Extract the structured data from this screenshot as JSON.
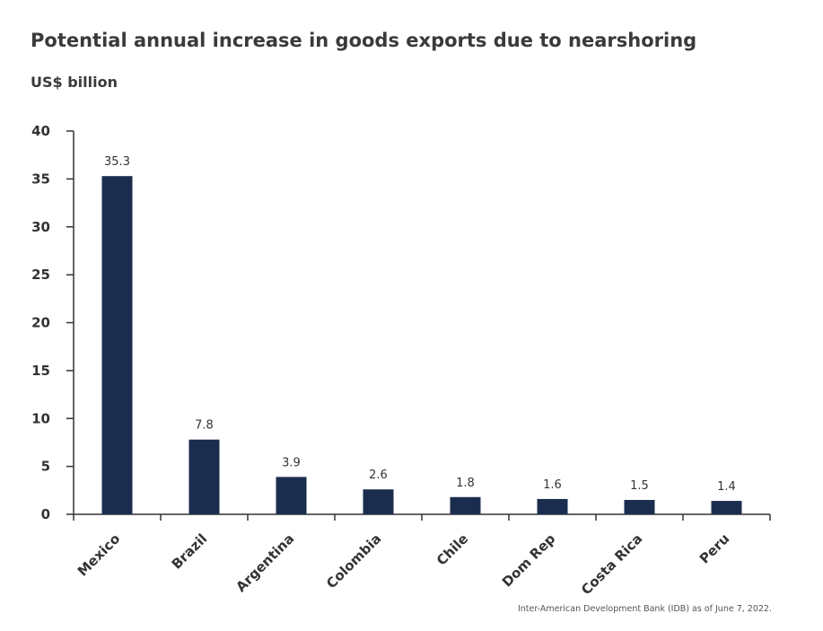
{
  "chart": {
    "title": "Potential annual increase in goods exports due to nearshoring",
    "subtitle": "US$ billion",
    "source": "Inter-American Development Bank (IDB) as of June 7, 2022."
  },
  "colors": {
    "bar": "#1b2d4f",
    "axis": "#333333",
    "text": "#333333"
  },
  "chart_data": {
    "type": "bar",
    "title": "Potential annual increase in goods exports due to nearshoring",
    "ylabel": "US$ billion",
    "xlabel": "",
    "categories": [
      "Mexico",
      "Brazil",
      "Argentina",
      "Colombia",
      "Chile",
      "Dom Rep",
      "Costa Rica",
      "Peru"
    ],
    "values": [
      35.3,
      7.8,
      3.9,
      2.6,
      1.8,
      1.6,
      1.5,
      1.4
    ],
    "data_labels": [
      "35.3",
      "7.8",
      "3.9",
      "2.6",
      "1.8",
      "1.6",
      "1.5",
      "1.4"
    ],
    "ylim": [
      0,
      40
    ],
    "yticks": [
      0,
      5,
      10,
      15,
      20,
      25,
      30,
      35,
      40
    ],
    "grid": false,
    "legend": "none"
  }
}
